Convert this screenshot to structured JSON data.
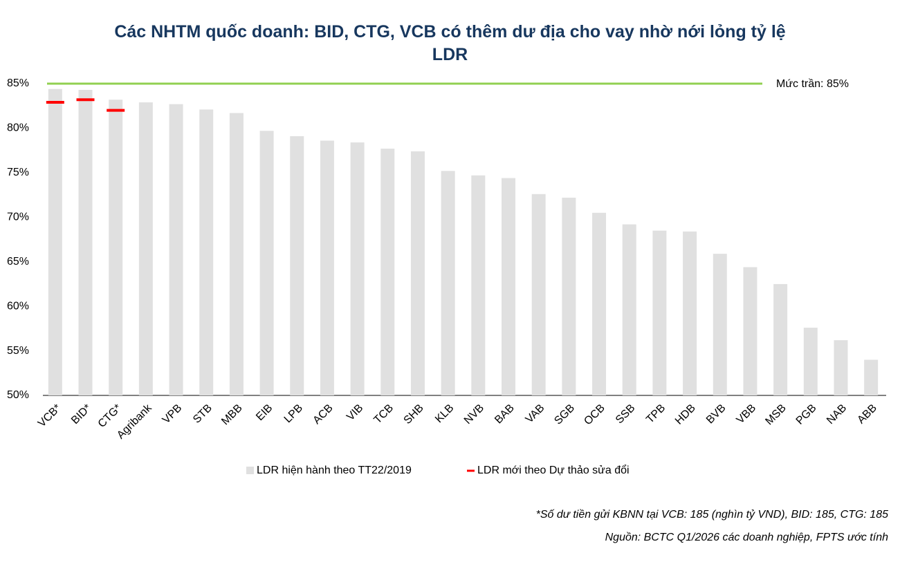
{
  "chart_data": {
    "type": "bar",
    "title": "Các NHTM quốc doanh: BID, CTG, VCB có thêm dư địa cho vay nhờ nới lỏng tỷ lệ LDR",
    "categories": [
      "VCB*",
      "BID*",
      "CTG*",
      "Agribank",
      "VPB",
      "STB",
      "MBB",
      "EIB",
      "LPB",
      "ACB",
      "VIB",
      "TCB",
      "SHB",
      "KLB",
      "NVB",
      "BAB",
      "VAB",
      "SGB",
      "OCB",
      "SSB",
      "TPB",
      "HDB",
      "BVB",
      "VBB",
      "MSB",
      "PGB",
      "NAB",
      "ABB"
    ],
    "series": [
      {
        "name": "LDR hiện hành theo TT22/2019",
        "color": "#e0e0e0",
        "values": [
          84.4,
          84.3,
          83.2,
          82.9,
          82.7,
          82.1,
          81.7,
          79.7,
          79.1,
          78.6,
          78.4,
          77.7,
          77.4,
          75.2,
          74.7,
          74.4,
          72.6,
          72.2,
          70.5,
          69.2,
          68.5,
          68.4,
          65.9,
          64.4,
          62.5,
          57.6,
          56.2,
          54.0
        ]
      },
      {
        "name": "LDR mới theo Dự thảo sửa đổi",
        "color": "#ff0000",
        "marker": "dash",
        "values": [
          82.9,
          83.2,
          82.0,
          null,
          null,
          null,
          null,
          null,
          null,
          null,
          null,
          null,
          null,
          null,
          null,
          null,
          null,
          null,
          null,
          null,
          null,
          null,
          null,
          null,
          null,
          null,
          null,
          null
        ]
      }
    ],
    "reference_line": {
      "value": 85,
      "label": "Mức trần: 85%",
      "color": "#92d050"
    },
    "ylim": [
      50,
      85
    ],
    "yticks": [
      {
        "value": 50,
        "label": "50%"
      },
      {
        "value": 55,
        "label": "55%"
      },
      {
        "value": 60,
        "label": "60%"
      },
      {
        "value": 65,
        "label": "65%"
      },
      {
        "value": 70,
        "label": "70%"
      },
      {
        "value": 75,
        "label": "75%"
      },
      {
        "value": 80,
        "label": "80%"
      },
      {
        "value": 85,
        "label": "85%"
      }
    ],
    "grid": false,
    "legend": "bottom",
    "notes": [
      "*Số dư tiền gửi KBNN tại VCB: 185 (nghìn tỷ VND), BID: 185, CTG: 185",
      "Nguồn: BCTC Q1/2026 các doanh nghiệp, FPTS ước tính"
    ]
  }
}
